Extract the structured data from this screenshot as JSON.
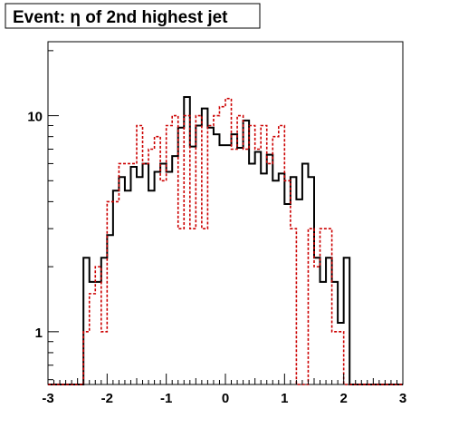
{
  "chart_data": {
    "type": "histogram",
    "title": "Event: η of 2nd highest jet",
    "xlabel": "",
    "ylabel": "",
    "xlim": [
      -3,
      3
    ],
    "ylim": [
      0.57,
      22
    ],
    "yscale": "log",
    "grid": false,
    "bin_edges": [
      -3.0,
      -2.9,
      -2.8,
      -2.7,
      -2.6,
      -2.5,
      -2.4,
      -2.3,
      -2.2,
      -2.1,
      -2.0,
      -1.9,
      -1.8,
      -1.7,
      -1.6,
      -1.5,
      -1.4,
      -1.3,
      -1.2,
      -1.1,
      -1.0,
      -0.9,
      -0.8,
      -0.7,
      -0.6,
      -0.5,
      -0.4,
      -0.3,
      -0.2,
      -0.1,
      0.0,
      0.1,
      0.2,
      0.3,
      0.4,
      0.5,
      0.6,
      0.7,
      0.8,
      0.9,
      1.0,
      1.1,
      1.2,
      1.3,
      1.4,
      1.5,
      1.6,
      1.7,
      1.8,
      1.9,
      2.0,
      2.1,
      2.2,
      2.3,
      2.4,
      2.5,
      2.6,
      2.7,
      2.8,
      2.9,
      3.0
    ],
    "x_ticks": [
      -3,
      -2,
      -1,
      0,
      1,
      2,
      3
    ],
    "x_tick_labels": [
      "-3",
      "-2",
      "-1",
      "0",
      "1",
      "2",
      "3"
    ],
    "y_ticks": [
      1,
      10
    ],
    "y_tick_labels": [
      "1",
      "10"
    ],
    "series": [
      {
        "style": "solid",
        "color": "#000000",
        "values": [
          0,
          0,
          0,
          0,
          0,
          0,
          2.2,
          1.7,
          1.7,
          2.2,
          2.8,
          4.5,
          5.2,
          4.5,
          5.8,
          5.2,
          6.0,
          4.5,
          5.5,
          6.0,
          5.5,
          6.5,
          8.8,
          12.2,
          7.2,
          9.0,
          10.8,
          8.8,
          8.2,
          7.3,
          7.3,
          8.2,
          7.1,
          9.5,
          6.0,
          6.8,
          5.4,
          6.6,
          5.0,
          5.4,
          3.9,
          5.2,
          4.1,
          6.0,
          5.2,
          2.2,
          1.7,
          2.2,
          1.7,
          1.1,
          2.2,
          0,
          0,
          0,
          0,
          0,
          0,
          0,
          0,
          0
        ]
      },
      {
        "style": "dashed",
        "color": "#cc0000",
        "values": [
          0,
          0,
          0,
          0,
          0,
          0,
          1.0,
          1.5,
          2.0,
          1.0,
          4.0,
          4.0,
          6.0,
          6.0,
          6.0,
          9.0,
          6.0,
          7.0,
          8.0,
          5.0,
          9.0,
          10.0,
          3.0,
          10.0,
          3.0,
          10.0,
          3.0,
          9.0,
          10.0,
          11.0,
          12.0,
          7.0,
          10.0,
          7.0,
          9.0,
          7.0,
          9.0,
          6.0,
          8.0,
          9.0,
          5.0,
          3.0,
          0,
          0.5,
          3.0,
          2.0,
          3.0,
          3.0,
          1.0,
          1.0,
          0,
          0,
          0,
          0,
          0,
          0,
          0,
          0,
          0,
          0
        ]
      }
    ]
  }
}
